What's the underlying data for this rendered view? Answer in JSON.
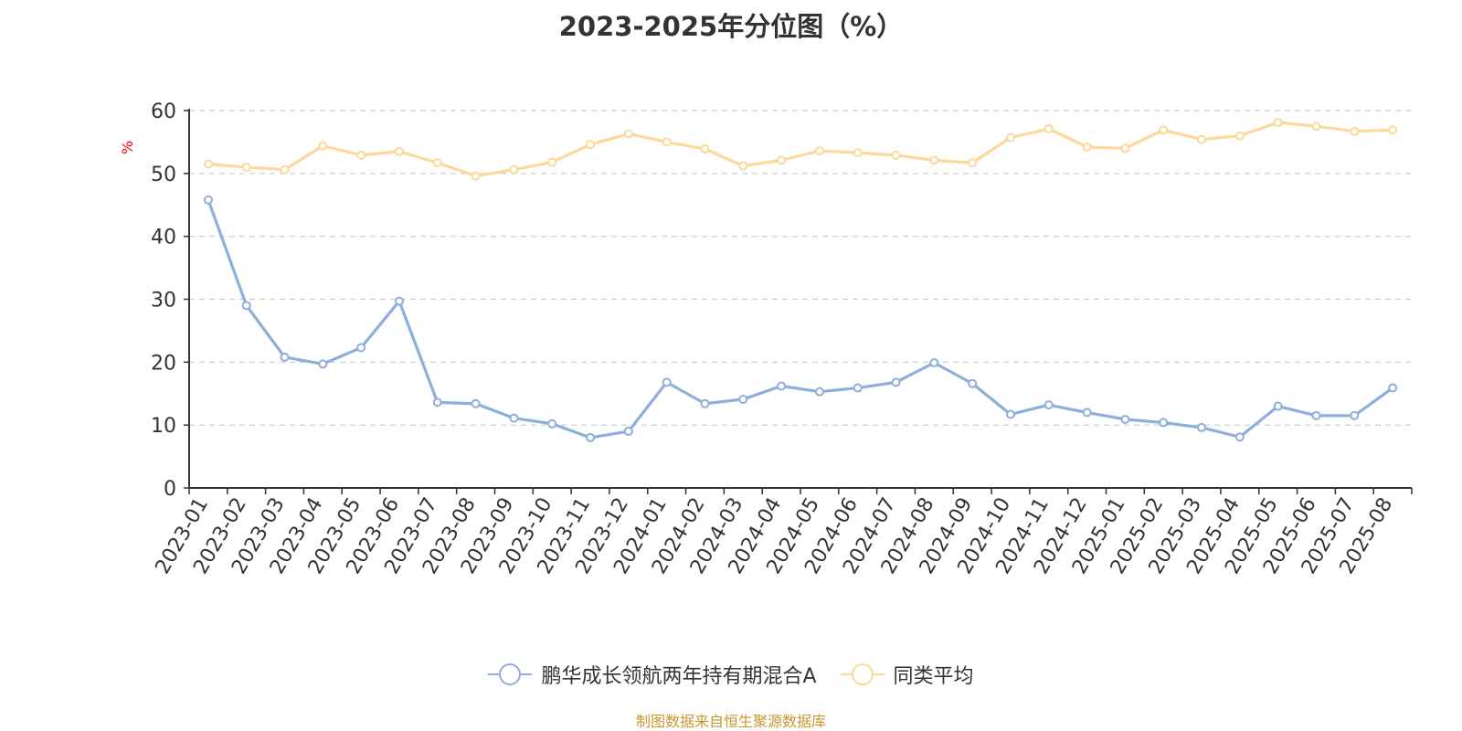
{
  "title": "2023-2025年分位图（%）",
  "source": "制图数据来自恒生聚源数据库",
  "chart_data": {
    "type": "line",
    "title": "2023-2025年分位图（%）",
    "xlabel": "",
    "ylabel": "%",
    "ylim": [
      0,
      60
    ],
    "yticks": [
      0,
      10,
      20,
      30,
      40,
      50,
      60
    ],
    "grid": true,
    "legend_position": "bottom",
    "categories": [
      "2023-01",
      "2023-02",
      "2023-03",
      "2023-04",
      "2023-05",
      "2023-06",
      "2023-07",
      "2023-08",
      "2023-09",
      "2023-10",
      "2023-11",
      "2023-12",
      "2024-01",
      "2024-02",
      "2024-03",
      "2024-04",
      "2024-05",
      "2024-06",
      "2024-07",
      "2024-08",
      "2024-09",
      "2024-10",
      "2024-11",
      "2024-12",
      "2025-01",
      "2025-02",
      "2025-03",
      "2025-04",
      "2025-05",
      "2025-06",
      "2025-07",
      "2025-08"
    ],
    "series": [
      {
        "name": "鹏华成长领航两年持有期混合A",
        "color": "#8eaedb",
        "values": [
          45.8,
          29.0,
          20.8,
          19.7,
          22.3,
          29.7,
          13.6,
          13.4,
          11.1,
          10.2,
          8.0,
          9.0,
          16.8,
          13.4,
          14.1,
          16.2,
          15.3,
          15.9,
          16.8,
          19.9,
          16.6,
          11.7,
          13.2,
          12.0,
          10.9,
          10.4,
          9.6,
          8.1,
          13.0,
          11.5,
          11.5,
          15.9
        ]
      },
      {
        "name": "同类平均",
        "color": "#fcd89a",
        "values": [
          51.5,
          51.0,
          50.6,
          54.4,
          52.9,
          53.5,
          51.7,
          49.6,
          50.6,
          51.8,
          54.6,
          56.3,
          55.0,
          53.9,
          51.2,
          52.1,
          53.6,
          53.3,
          52.9,
          52.1,
          51.7,
          55.7,
          57.1,
          54.2,
          54.0,
          56.9,
          55.4,
          56.0,
          58.1,
          57.5,
          56.7,
          56.9
        ]
      }
    ]
  }
}
